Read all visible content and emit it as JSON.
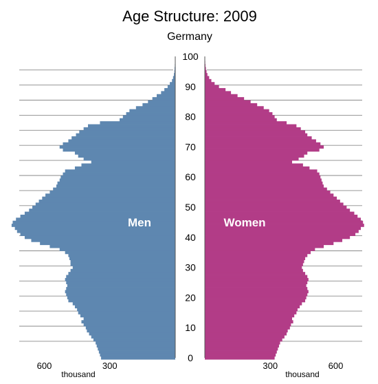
{
  "chart_data": {
    "type": "bar",
    "orientation": "population-pyramid",
    "title": "Age Structure: 2009",
    "subtitle": "Germany",
    "age_axis": {
      "ticks": [
        0,
        10,
        20,
        30,
        40,
        50,
        60,
        70,
        80,
        90,
        100
      ],
      "range": [
        0,
        100
      ]
    },
    "population_axis": {
      "ticks": [
        300,
        600
      ],
      "unit_label": "thousand",
      "range": [
        0,
        720
      ]
    },
    "ages": [
      0,
      1,
      2,
      3,
      4,
      5,
      6,
      7,
      8,
      9,
      10,
      11,
      12,
      13,
      14,
      15,
      16,
      17,
      18,
      19,
      20,
      21,
      22,
      23,
      24,
      25,
      26,
      27,
      28,
      29,
      30,
      31,
      32,
      33,
      34,
      35,
      36,
      37,
      38,
      39,
      40,
      41,
      42,
      43,
      44,
      45,
      46,
      47,
      48,
      49,
      50,
      51,
      52,
      53,
      54,
      55,
      56,
      57,
      58,
      59,
      60,
      61,
      62,
      63,
      64,
      65,
      66,
      67,
      68,
      69,
      70,
      71,
      72,
      73,
      74,
      75,
      76,
      77,
      78,
      79,
      80,
      81,
      82,
      83,
      84,
      85,
      86,
      87,
      88,
      89,
      90,
      91,
      92,
      93,
      94,
      95,
      96,
      97,
      98,
      99,
      100
    ],
    "series": [
      {
        "name": "Men",
        "color": "#5e87b0",
        "values": [
          340,
          345,
          350,
          355,
          360,
          365,
          375,
          385,
          395,
          405,
          410,
          420,
          430,
          420,
          435,
          445,
          450,
          460,
          470,
          490,
          495,
          500,
          505,
          500,
          495,
          500,
          505,
          500,
          490,
          480,
          470,
          480,
          480,
          485,
          490,
          505,
          530,
          575,
          620,
          660,
          690,
          710,
          725,
          735,
          750,
          745,
          730,
          710,
          690,
          670,
          655,
          640,
          625,
          610,
          595,
          575,
          560,
          545,
          540,
          530,
          525,
          515,
          505,
          460,
          430,
          385,
          420,
          445,
          460,
          515,
          530,
          515,
          490,
          475,
          455,
          440,
          420,
          400,
          345,
          255,
          240,
          225,
          210,
          180,
          150,
          125,
          105,
          85,
          65,
          50,
          35,
          25,
          15,
          10,
          6,
          4,
          3,
          2,
          1,
          1,
          0
        ]
      },
      {
        "name": "Women",
        "color": "#b23c87",
        "values": [
          320,
          325,
          330,
          335,
          340,
          345,
          355,
          365,
          375,
          380,
          390,
          395,
          405,
          400,
          410,
          420,
          425,
          435,
          445,
          460,
          465,
          470,
          475,
          470,
          465,
          470,
          475,
          470,
          460,
          450,
          445,
          450,
          455,
          460,
          470,
          485,
          505,
          545,
          590,
          630,
          665,
          690,
          705,
          715,
          730,
          725,
          715,
          700,
          685,
          665,
          650,
          635,
          620,
          605,
          590,
          575,
          560,
          545,
          540,
          535,
          530,
          525,
          515,
          480,
          450,
          400,
          430,
          455,
          470,
          525,
          545,
          530,
          510,
          490,
          470,
          460,
          440,
          420,
          375,
          330,
          320,
          310,
          295,
          270,
          240,
          210,
          180,
          150,
          120,
          95,
          65,
          45,
          30,
          20,
          12,
          8,
          5,
          3,
          2,
          1,
          0
        ]
      }
    ]
  }
}
